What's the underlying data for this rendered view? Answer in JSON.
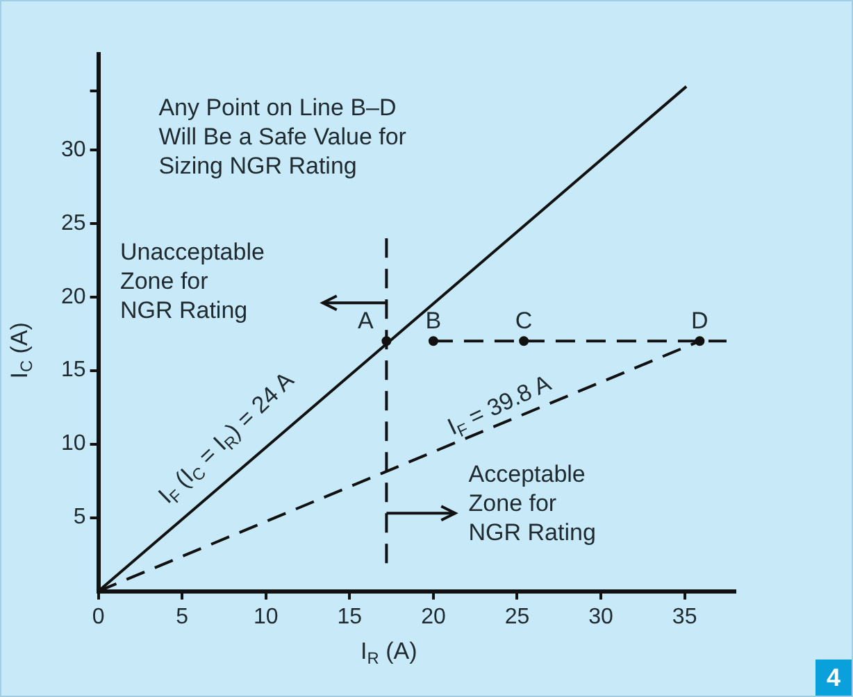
{
  "chart_data": {
    "type": "line",
    "xlabel": "I$_{R}$ (A)",
    "ylabel": "I$_{C}$ (A)",
    "xlim": [
      0,
      38
    ],
    "ylim": [
      0,
      36.5
    ],
    "xticks": [
      0,
      5,
      10,
      15,
      20,
      25,
      30,
      35
    ],
    "yticks": [
      5,
      10,
      15,
      20,
      25,
      30,
      {
        "value": 34,
        "label": null
      }
    ],
    "grid": false,
    "legend": false,
    "series": [
      {
        "x": [
          0,
          35.1
        ],
        "values": [
          0,
          34.3
        ],
        "color": "#111111",
        "line_style": "solid",
        "marker": "none"
      },
      {
        "x": [
          0,
          35.9
        ],
        "values": [
          0,
          17
        ],
        "color": "#111111",
        "line_style": "dashed",
        "marker": "none"
      },
      {
        "x": [
          20,
          37.5
        ],
        "values": [
          17,
          17
        ],
        "color": "#111111",
        "line_style": "dashed",
        "marker": "none"
      },
      {
        "x": [
          17.2,
          17.2
        ],
        "values": [
          1.9,
          24
        ],
        "color": "#111111",
        "line_style": "dashed",
        "marker": "none"
      },
      {
        "type": "scatter",
        "x": [
          17.2,
          20,
          25.4,
          35.9
        ],
        "values": [
          17,
          17,
          17,
          17
        ],
        "color": "#111111",
        "marker": "circle"
      }
    ],
    "annotations": [
      "Any Point on Line B–D\nWill Be a Safe Value for\nSizing NGR Rating",
      "Unacceptable\nZone for\nNGR Rating",
      "Acceptable\nZone for\nNGR Rating",
      {
        "text": "A",
        "x": 17.2,
        "y": 17
      },
      {
        "text": "B",
        "x": 20,
        "y": 17
      },
      {
        "text": "C",
        "x": 25.4,
        "y": 17
      },
      {
        "text": "D",
        "x": 35.9,
        "y": 17
      },
      "I$_{F}$ (I$_{C}$ = I$_{R}$) = 24 A",
      "I$_{F}$ = 39.8 A",
      "4"
    ]
  }
}
